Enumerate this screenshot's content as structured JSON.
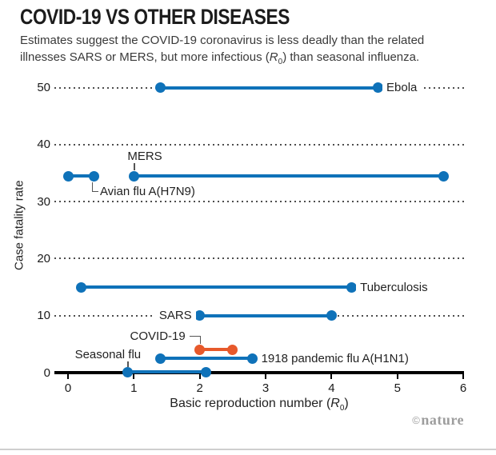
{
  "header": {
    "title": "COVID-19 VS OTHER DISEASES",
    "subtitle_line1": "Estimates suggest the COVID-19 coronavirus is less deadly than the related",
    "subtitle_line2_pre": "illnesses SARS or MERS, but more infectious (",
    "subtitle_r": "R",
    "subtitle_sub": "0",
    "subtitle_line2_post": ") than seasonal influenza."
  },
  "chart_data": {
    "type": "dumbbell-range",
    "title": "COVID-19 VS OTHER DISEASES",
    "xlabel": "Basic reproduction number (R0)",
    "ylabel": "Case fatality rate",
    "xlim": [
      0,
      6
    ],
    "ylim": [
      0,
      52
    ],
    "x_ticks": [
      0,
      1,
      2,
      3,
      4,
      5,
      6
    ],
    "y_ticks": [
      0,
      10,
      20,
      30,
      40,
      50
    ],
    "grid": "horizontal-dotted",
    "legend": "none",
    "series": [
      {
        "name": "Ebola",
        "cfr": 50,
        "r0_min": 1.4,
        "r0_max": 4.7,
        "color_key": "blue",
        "label_position": "right"
      },
      {
        "name": "MERS",
        "cfr": 34.5,
        "r0_min": 1.0,
        "r0_max": 5.7,
        "color_key": "blue",
        "label_position": "above-start"
      },
      {
        "name": "Avian flu A(H7N9)",
        "cfr": 34.5,
        "r0_min": 0,
        "r0_max": 0.4,
        "color_key": "blue",
        "label_position": "below-end"
      },
      {
        "name": "Tuberculosis",
        "cfr": 15,
        "r0_min": 0.2,
        "r0_max": 4.3,
        "color_key": "blue",
        "label_position": "right"
      },
      {
        "name": "SARS",
        "cfr": 10,
        "r0_min": 2.0,
        "r0_max": 4.0,
        "color_key": "blue",
        "label_position": "left"
      },
      {
        "name": "COVID-19",
        "cfr": 4,
        "r0_min": 2.0,
        "r0_max": 2.5,
        "color_key": "orange",
        "label_position": "corner-above-start"
      },
      {
        "name": "1918 pandemic flu A(H1N1)",
        "cfr": 2.5,
        "r0_min": 1.4,
        "r0_max": 2.8,
        "color_key": "blue",
        "label_position": "right"
      },
      {
        "name": "Seasonal flu",
        "cfr": 0.1,
        "r0_min": 0.9,
        "r0_max": 2.1,
        "color_key": "blue",
        "label_position": "above-start-tick"
      }
    ]
  },
  "axis_labels": {
    "xlabel_pre": "Basic reproduction number (",
    "xlabel_r": "R",
    "xlabel_sub": "0",
    "xlabel_post": ")"
  },
  "credit": {
    "symbol": "©",
    "name": "nature"
  },
  "colors": {
    "blue": "#0f72b9",
    "orange": "#e7592b",
    "grid_dot": "#4d4d4d",
    "axis": "#000000",
    "text": "#1a1a1a",
    "credit": "#9d9d9d"
  }
}
